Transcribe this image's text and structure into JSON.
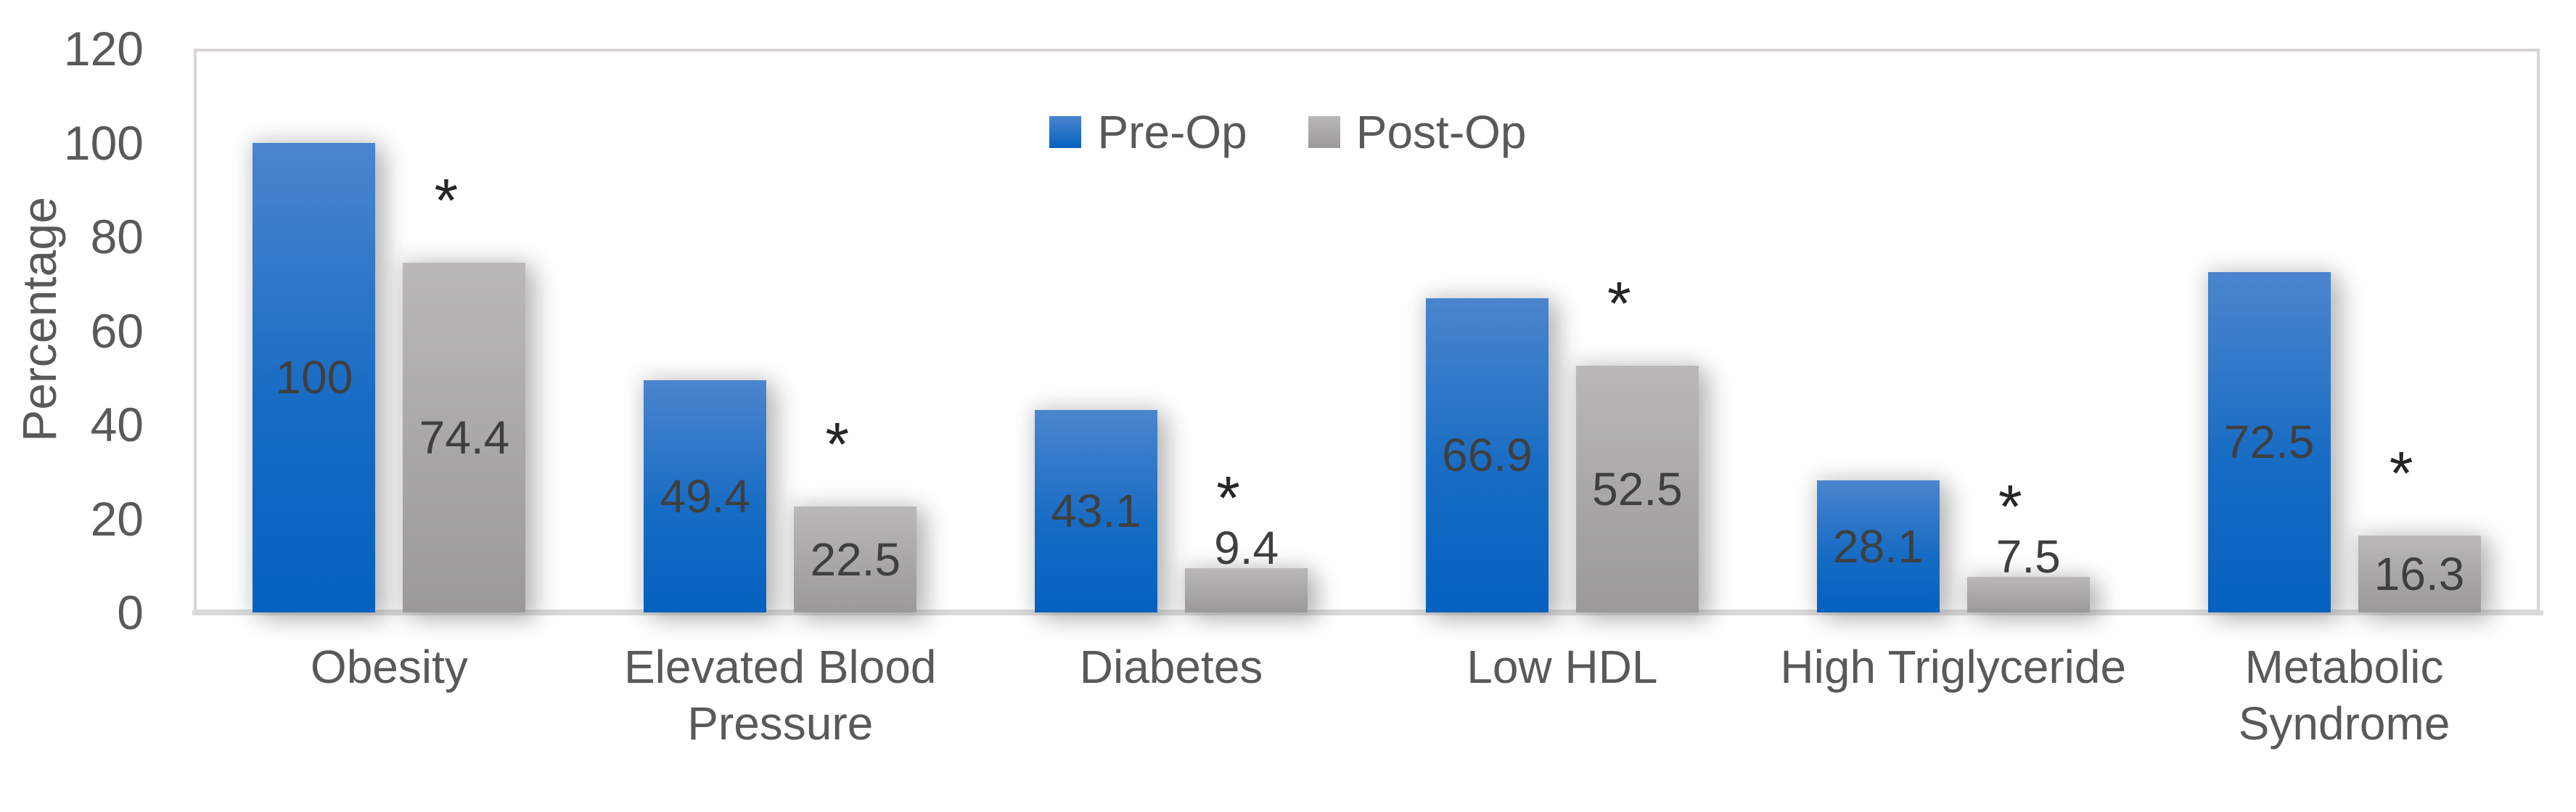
{
  "chart_data": {
    "type": "bar",
    "title": "",
    "ylabel": "Percentage",
    "ylim": [
      0,
      120
    ],
    "yticks": [
      0,
      20,
      40,
      60,
      80,
      100,
      120
    ],
    "grid": false,
    "legend_position": "top-center",
    "categories": [
      "Obesity",
      "Elevated Blood\nPressure",
      "Diabetes",
      "Low HDL",
      "High Triglyceride",
      "Metabolic\nSyndrome"
    ],
    "series": [
      {
        "name": "Pre-Op",
        "values": [
          100,
          49.4,
          43.1,
          66.9,
          28.1,
          72.5
        ],
        "labels": [
          "100",
          "49.4",
          "43.1",
          "66.9",
          "28.1",
          "72.5"
        ]
      },
      {
        "name": "Post-Op",
        "values": [
          74.4,
          22.5,
          9.4,
          52.5,
          7.5,
          16.3
        ],
        "labels": [
          "74.4",
          "22.5",
          "9.4",
          "52.5",
          "7.5",
          "16.3"
        ]
      }
    ],
    "significance": {
      "symbol": "*",
      "on_series": "Post-Op",
      "marked": [
        true,
        true,
        true,
        true,
        true,
        true
      ]
    }
  },
  "colors": {
    "pre_op_gradient_top": "#4b85ce",
    "pre_op_gradient_mid": "#176cc4",
    "pre_op_gradient_bottom": "#0461bf",
    "post_op_gradient_top": "#bab9b7",
    "post_op_gradient_mid": "#a8a7a5",
    "post_op_gradient_bottom": "#9b9a98",
    "axis_text": "#595959",
    "data_label_text": "#3f3f3f",
    "asterisk": "#262626",
    "plot_border": "#d8d5d3",
    "axis_line": "#d9d9d9"
  }
}
